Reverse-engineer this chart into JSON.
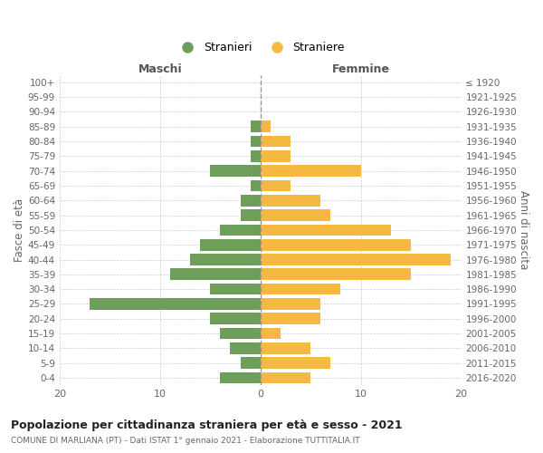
{
  "age_groups": [
    "100+",
    "95-99",
    "90-94",
    "85-89",
    "80-84",
    "75-79",
    "70-74",
    "65-69",
    "60-64",
    "55-59",
    "50-54",
    "45-49",
    "40-44",
    "35-39",
    "30-34",
    "25-29",
    "20-24",
    "15-19",
    "10-14",
    "5-9",
    "0-4"
  ],
  "birth_years": [
    "≤ 1920",
    "1921-1925",
    "1926-1930",
    "1931-1935",
    "1936-1940",
    "1941-1945",
    "1946-1950",
    "1951-1955",
    "1956-1960",
    "1961-1965",
    "1966-1970",
    "1971-1975",
    "1976-1980",
    "1981-1985",
    "1986-1990",
    "1991-1995",
    "1996-2000",
    "2001-2005",
    "2006-2010",
    "2011-2015",
    "2016-2020"
  ],
  "maschi": [
    0,
    0,
    0,
    1,
    1,
    1,
    5,
    1,
    2,
    2,
    4,
    6,
    7,
    9,
    5,
    17,
    5,
    4,
    3,
    2,
    4
  ],
  "femmine": [
    0,
    0,
    0,
    1,
    3,
    3,
    10,
    3,
    6,
    7,
    13,
    15,
    19,
    15,
    8,
    6,
    6,
    2,
    5,
    7,
    5
  ],
  "color_maschi": "#6d9e5a",
  "color_femmine": "#f5b942",
  "title": "Popolazione per cittadinanza straniera per età e sesso - 2021",
  "subtitle": "COMUNE DI MARLIANA (PT) - Dati ISTAT 1° gennaio 2021 - Elaborazione TUTTITALIA.IT",
  "ylabel_left": "Fasce di età",
  "ylabel_right": "Anni di nascita",
  "xlabel_maschi": "Maschi",
  "xlabel_femmine": "Femmine",
  "legend_maschi": "Stranieri",
  "legend_femmine": "Straniere",
  "xlim": 20,
  "background_color": "#ffffff",
  "grid_color": "#cccccc"
}
